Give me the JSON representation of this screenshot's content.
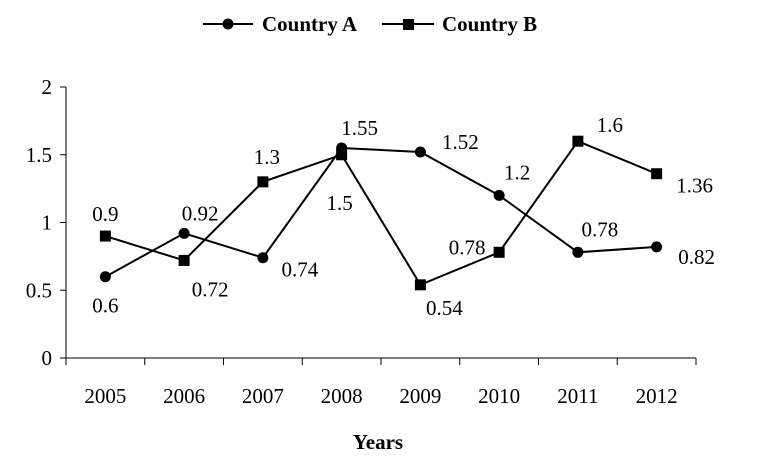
{
  "chart_data": {
    "type": "line",
    "categories": [
      "2005",
      "2006",
      "2007",
      "2008",
      "2009",
      "2010",
      "2011",
      "2012"
    ],
    "series": [
      {
        "name": "Country A",
        "marker": "circle",
        "values": [
          0.6,
          0.92,
          0.74,
          1.55,
          1.52,
          1.2,
          0.78,
          0.82
        ],
        "labels": [
          "0.6",
          "0.92",
          "0.74",
          "1.55",
          "1.52",
          "1.2",
          "0.78",
          "0.82"
        ]
      },
      {
        "name": "Country B",
        "marker": "square",
        "values": [
          0.9,
          0.72,
          1.3,
          1.5,
          0.54,
          0.78,
          1.6,
          1.36
        ],
        "labels": [
          "0.9",
          "0.72",
          "1.3",
          "1.5",
          "0.54",
          "0.78",
          "1.6",
          "1.36"
        ]
      }
    ],
    "xlabel": "Years",
    "ylabel": "",
    "ylim": [
      0,
      2
    ],
    "yticks": [
      "0",
      "0.5",
      "1",
      "1.5",
      "2"
    ],
    "grid": false,
    "legend_position": "top-center",
    "colors": {
      "line": "#000000",
      "background": "#ffffff"
    }
  }
}
